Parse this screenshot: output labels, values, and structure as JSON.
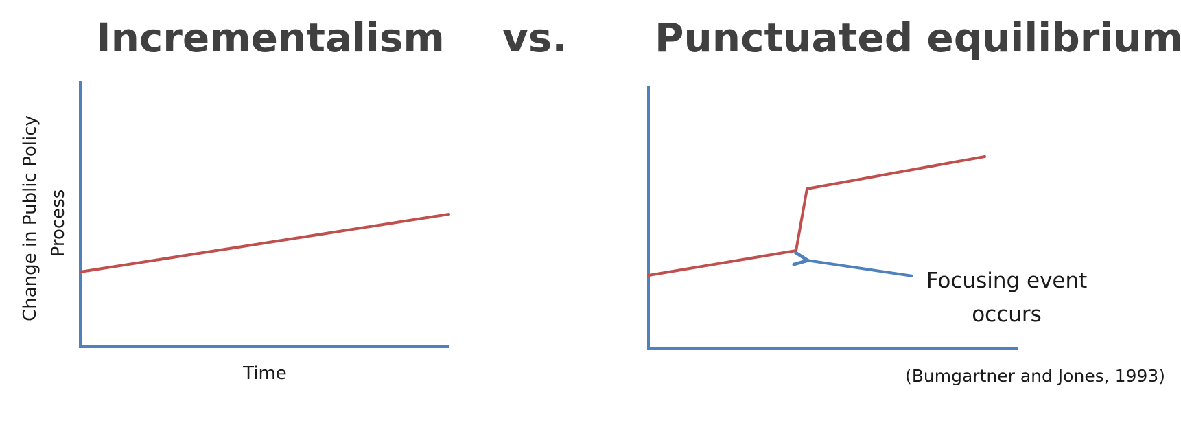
{
  "titles": {
    "left": "Incrementalism",
    "middle": "vs.",
    "right": "Punctuated equilibrium"
  },
  "left_chart": {
    "ylabel_line1": "Change  in  Public Policy",
    "ylabel_line2": "Process",
    "xlabel": "Time"
  },
  "right_chart": {
    "annotation_line1": "Focusing event",
    "annotation_line2": "occurs"
  },
  "citation": "(Bumgartner and Jones, 1993)",
  "colors": {
    "axis": "#4f81bd",
    "trend": "#c0504d",
    "arrow": "#4f81bd",
    "title": "#404040"
  }
}
